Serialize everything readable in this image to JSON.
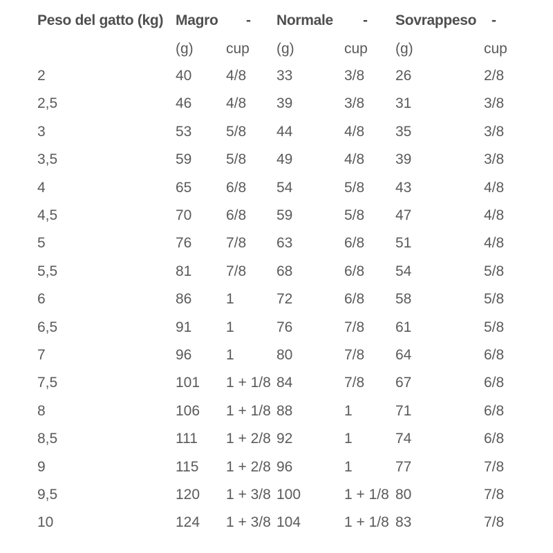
{
  "header": {
    "weight": "Peso del gatto (kg)",
    "lean": "Magro",
    "lean_dash": "-",
    "normal": "Normale",
    "normal_dash": "-",
    "overweight": "Sovrappeso",
    "overweight_dash": "-"
  },
  "subheader": [
    "",
    "(g)",
    "cup",
    "(g)",
    "cup",
    "(g)",
    "cup"
  ],
  "rows": [
    [
      "2",
      "40",
      "4/8",
      "33",
      "3/8",
      "26",
      "2/8"
    ],
    [
      "2,5",
      "46",
      "4/8",
      "39",
      "3/8",
      "31",
      "3/8"
    ],
    [
      "3",
      "53",
      "5/8",
      "44",
      "4/8",
      "35",
      "3/8"
    ],
    [
      "3,5",
      "59",
      "5/8",
      "49",
      "4/8",
      "39",
      "3/8"
    ],
    [
      "4",
      "65",
      "6/8",
      "54",
      "5/8",
      "43",
      "4/8"
    ],
    [
      "4,5",
      "70",
      "6/8",
      "59",
      "5/8",
      "47",
      "4/8"
    ],
    [
      "5",
      "76",
      "7/8",
      "63",
      "6/8",
      "51",
      "4/8"
    ],
    [
      "5,5",
      "81",
      "7/8",
      "68",
      "6/8",
      "54",
      "5/8"
    ],
    [
      "6",
      "86",
      "1",
      "72",
      "6/8",
      "58",
      "5/8"
    ],
    [
      "6,5",
      "91",
      "1",
      "76",
      "7/8",
      "61",
      "5/8"
    ],
    [
      "7",
      "96",
      "1",
      "80",
      "7/8",
      "64",
      "6/8"
    ],
    [
      "7,5",
      "101",
      "1 + 1/8",
      "84",
      "7/8",
      "67",
      "6/8"
    ],
    [
      "8",
      "106",
      "1 + 1/8",
      "88",
      "1",
      "71",
      "6/8"
    ],
    [
      "8,5",
      "111",
      "1 + 2/8",
      "92",
      "1",
      "74",
      "6/8"
    ],
    [
      "9",
      "115",
      "1 + 2/8",
      "96",
      "1",
      "77",
      "7/8"
    ],
    [
      "9,5",
      "120",
      "1 + 3/8",
      "100",
      "1 + 1/8",
      "80",
      "7/8"
    ],
    [
      "10",
      "124",
      "1 + 3/8",
      "104",
      "1 + 1/8",
      "83",
      "7/8"
    ]
  ]
}
